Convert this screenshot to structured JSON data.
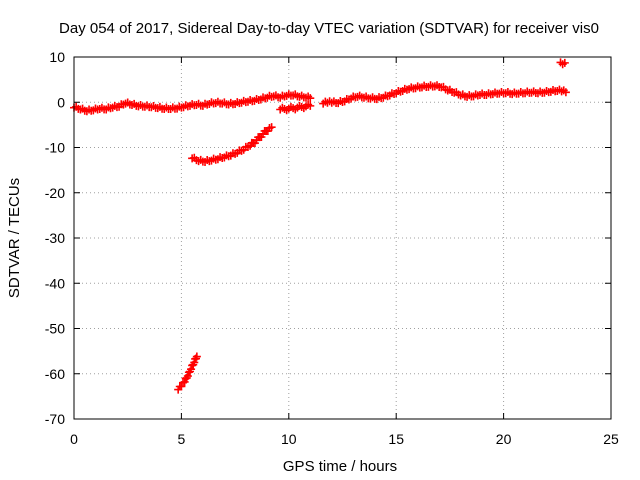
{
  "chart_data": {
    "type": "scatter",
    "title": "Day 054 of 2017, Sidereal Day-to-day VTEC variation (SDTVAR) for receiver vis0",
    "xlabel": "GPS time / hours",
    "ylabel": "SDTVAR / TECUs",
    "xlim": [
      0,
      25
    ],
    "ylim": [
      -70,
      10
    ],
    "xticks": [
      0,
      5,
      10,
      15,
      20,
      25
    ],
    "yticks": [
      10,
      0,
      -10,
      -20,
      -30,
      -40,
      -50,
      -60,
      -70
    ],
    "grid": true,
    "marker": "plus",
    "colors": {
      "series": "#ff0000",
      "grid": "#a0a0a0",
      "axis": "#000000"
    },
    "series": [
      {
        "segments": [
          [
            [
              0.0,
              -1.2
            ],
            [
              0.3,
              -1.6
            ],
            [
              0.6,
              -2.0
            ],
            [
              0.9,
              -1.8
            ],
            [
              1.2,
              -1.5
            ],
            [
              1.5,
              -1.6
            ],
            [
              1.8,
              -1.2
            ],
            [
              2.1,
              -1.0
            ],
            [
              2.4,
              -0.3
            ],
            [
              2.7,
              -0.6
            ],
            [
              3.0,
              -0.9
            ],
            [
              3.3,
              -1.0
            ],
            [
              3.6,
              -1.1
            ],
            [
              3.9,
              -1.3
            ],
            [
              4.2,
              -1.5
            ],
            [
              4.5,
              -1.5
            ],
            [
              4.8,
              -1.4
            ],
            [
              5.1,
              -1.1
            ],
            [
              5.4,
              -0.8
            ],
            [
              5.7,
              -0.6
            ],
            [
              6.0,
              -0.8
            ],
            [
              6.3,
              -0.4
            ],
            [
              6.6,
              -0.2
            ],
            [
              6.9,
              -0.3
            ],
            [
              7.2,
              -0.5
            ],
            [
              7.5,
              -0.4
            ],
            [
              7.8,
              -0.1
            ],
            [
              8.1,
              0.1
            ],
            [
              8.4,
              0.3
            ],
            [
              8.7,
              0.6
            ],
            [
              9.0,
              1.0
            ],
            [
              9.3,
              1.3
            ],
            [
              9.6,
              1.0
            ],
            [
              9.9,
              1.4
            ],
            [
              10.2,
              1.5
            ],
            [
              10.5,
              1.2
            ],
            [
              10.8,
              1.0
            ],
            [
              11.0,
              0.9
            ]
          ],
          [
            [
              9.6,
              -1.6
            ],
            [
              10.0,
              -1.4
            ],
            [
              10.4,
              -1.2
            ],
            [
              10.8,
              -0.9
            ],
            [
              11.0,
              -0.8
            ]
          ],
          [
            [
              11.6,
              -0.3
            ],
            [
              11.8,
              -0.1
            ],
            [
              12.0,
              -0.1
            ],
            [
              12.3,
              -0.2
            ],
            [
              12.6,
              0.2
            ],
            [
              12.9,
              0.8
            ],
            [
              13.2,
              1.2
            ],
            [
              13.5,
              1.0
            ],
            [
              13.8,
              0.8
            ],
            [
              14.1,
              0.7
            ],
            [
              14.4,
              1.0
            ],
            [
              14.7,
              1.5
            ],
            [
              15.0,
              2.0
            ],
            [
              15.3,
              2.5
            ],
            [
              15.6,
              2.9
            ],
            [
              15.9,
              3.1
            ],
            [
              16.2,
              3.3
            ],
            [
              16.5,
              3.4
            ],
            [
              16.8,
              3.5
            ],
            [
              17.1,
              3.3
            ],
            [
              17.4,
              2.6
            ],
            [
              17.7,
              2.1
            ],
            [
              18.0,
              1.5
            ],
            [
              18.3,
              1.2
            ],
            [
              18.6,
              1.3
            ],
            [
              18.9,
              1.6
            ],
            [
              19.2,
              1.6
            ],
            [
              19.5,
              1.8
            ],
            [
              19.8,
              1.9
            ],
            [
              20.1,
              2.0
            ],
            [
              20.4,
              1.8
            ],
            [
              20.7,
              1.9
            ],
            [
              21.0,
              2.0
            ],
            [
              21.3,
              2.1
            ],
            [
              21.6,
              2.0
            ],
            [
              21.9,
              2.1
            ],
            [
              22.2,
              2.3
            ],
            [
              22.5,
              2.5
            ],
            [
              22.7,
              2.4
            ],
            [
              22.9,
              2.2
            ]
          ],
          [
            [
              22.65,
              8.8
            ],
            [
              22.75,
              8.4
            ],
            [
              22.85,
              8.7
            ]
          ],
          [
            [
              5.5,
              -12.4
            ],
            [
              5.8,
              -13.0
            ],
            [
              6.1,
              -13.2
            ],
            [
              6.4,
              -12.9
            ],
            [
              6.7,
              -12.6
            ],
            [
              7.0,
              -12.2
            ],
            [
              7.3,
              -11.8
            ],
            [
              7.6,
              -11.2
            ],
            [
              7.9,
              -10.5
            ],
            [
              8.2,
              -9.6
            ],
            [
              8.5,
              -8.4
            ],
            [
              8.8,
              -7.0
            ],
            [
              9.1,
              -5.7
            ],
            [
              9.2,
              -5.5
            ]
          ],
          [
            [
              4.85,
              -63.5
            ],
            [
              5.0,
              -62.8
            ],
            [
              5.15,
              -61.8
            ],
            [
              5.3,
              -60.5
            ],
            [
              5.45,
              -59.0
            ],
            [
              5.6,
              -57.5
            ],
            [
              5.72,
              -56.2
            ]
          ]
        ]
      }
    ]
  }
}
